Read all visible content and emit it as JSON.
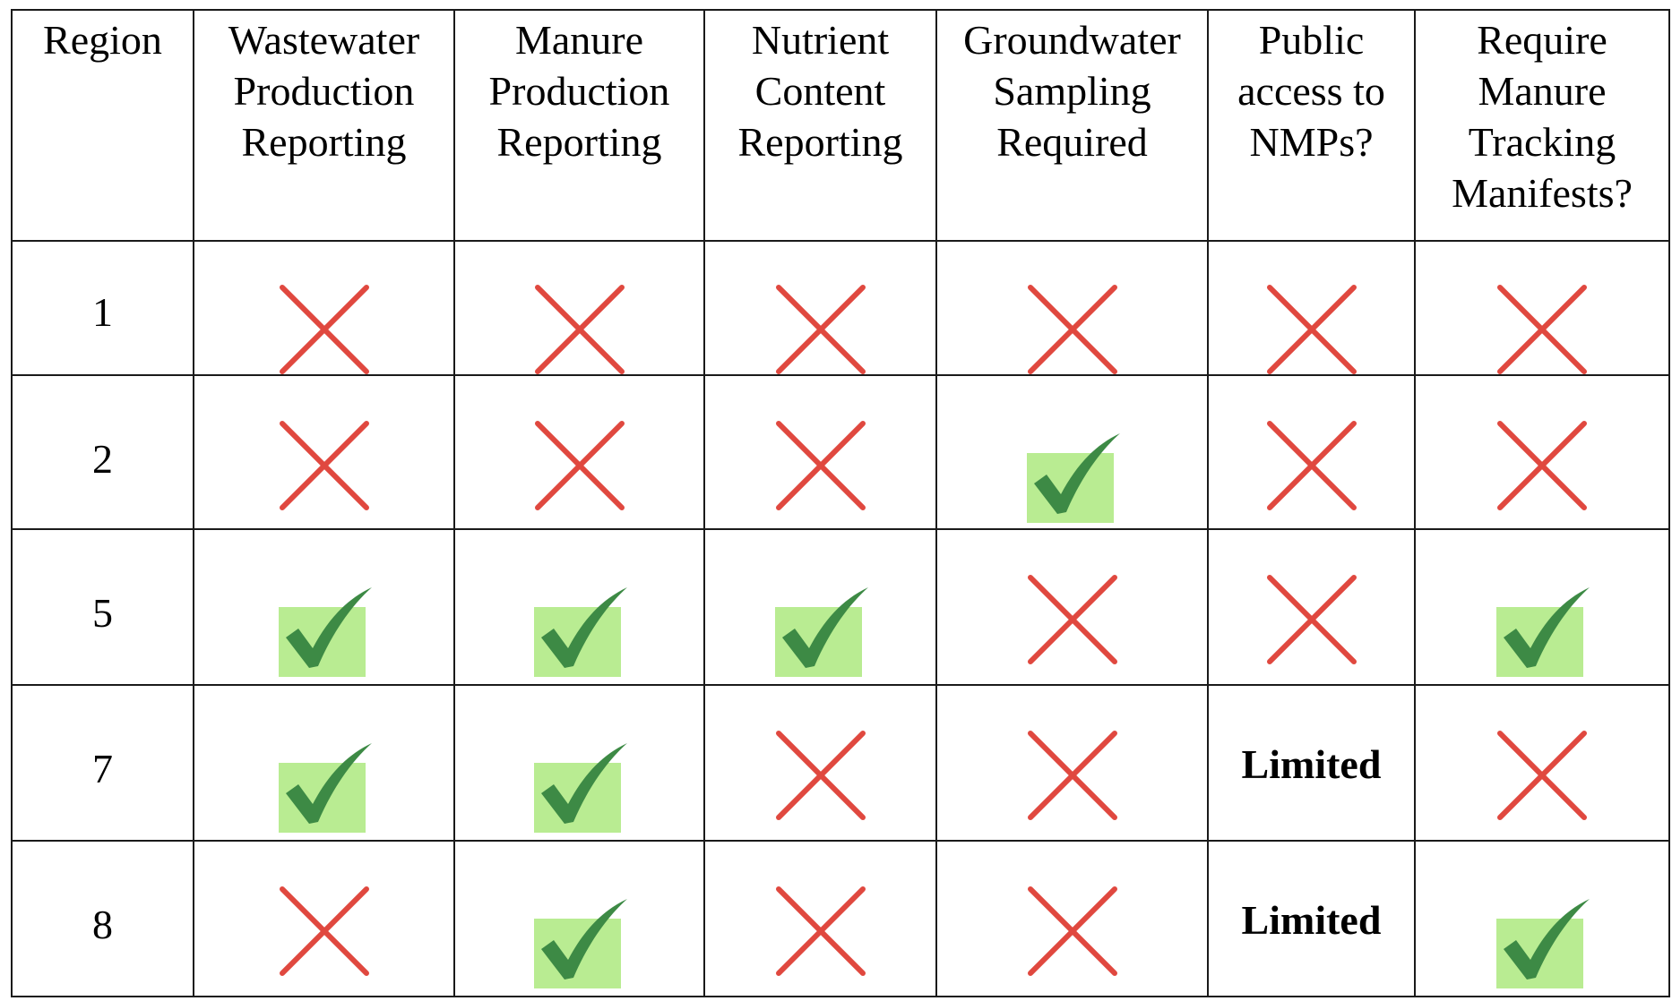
{
  "table": {
    "headers": [
      "Region",
      "Wastewater Production Reporting",
      "Manure Production Reporting",
      "Nutrient Content Reporting",
      "Groundwater Sampling Required",
      "Public access to NMPs?",
      "Require Manure Tracking Manifests?"
    ],
    "rows": [
      {
        "region": "1",
        "cells": [
          "no",
          "no",
          "no",
          "no",
          "no",
          "no"
        ]
      },
      {
        "region": "2",
        "cells": [
          "no",
          "no",
          "no",
          "yes",
          "no",
          "no"
        ]
      },
      {
        "region": "5",
        "cells": [
          "yes",
          "yes",
          "yes",
          "no",
          "no",
          "yes"
        ]
      },
      {
        "region": "7",
        "cells": [
          "yes",
          "yes",
          "no",
          "no",
          "Limited",
          "no"
        ]
      },
      {
        "region": "8",
        "cells": [
          "no",
          "yes",
          "no",
          "no",
          "Limited",
          "yes"
        ]
      }
    ]
  },
  "icons": {
    "yes": "check-icon",
    "no": "cross-icon"
  },
  "colors": {
    "cross": "#e0483f",
    "check_mark": "#3d8a45",
    "check_box": "#b9ec92",
    "border": "#1a1a1a"
  }
}
